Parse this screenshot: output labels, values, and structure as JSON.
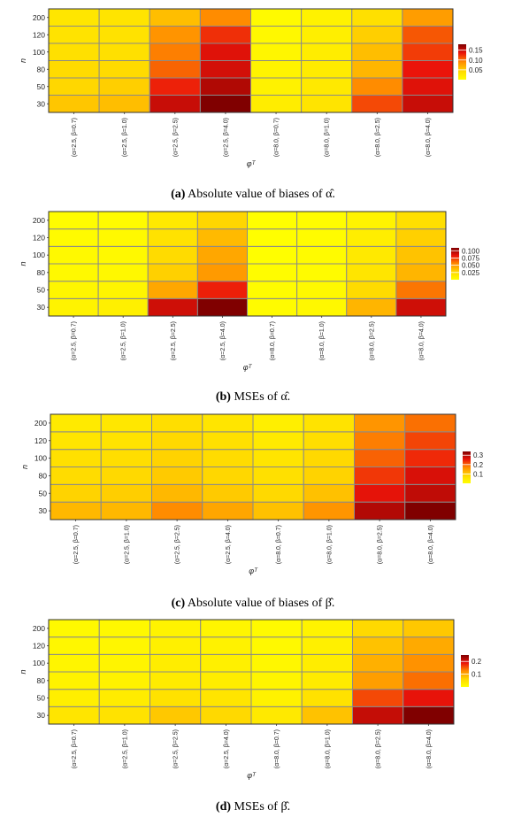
{
  "chart_data": [
    {
      "type": "heatmap",
      "panel_label": "(a)",
      "caption": "Absolute value of biases of α̂.",
      "xlabel": "φᵀ",
      "ylabel": "n",
      "y_categories": [
        "30",
        "50",
        "80",
        "100",
        "120",
        "200"
      ],
      "x_categories": [
        "(α=2.5, β=0.7)",
        "(α=2.5, β=1.0)",
        "(α=2.5, β=2.5)",
        "(α=2.5, β=4.0)",
        "(α=8.0, β=0.7)",
        "(α=8.0, β=1.0)",
        "(α=8.0, β=2.5)",
        "(α=8.0, β=4.0)"
      ],
      "colorbar_ticks": [
        "0.15",
        "0.10",
        "0.05"
      ],
      "colorbar_range": [
        0.0,
        0.18
      ],
      "values": [
        [
          0.055,
          0.06,
          0.15,
          0.18,
          0.02,
          0.03,
          0.115,
          0.15
        ],
        [
          0.045,
          0.05,
          0.13,
          0.16,
          0.015,
          0.025,
          0.09,
          0.14
        ],
        [
          0.04,
          0.04,
          0.105,
          0.145,
          0.012,
          0.022,
          0.065,
          0.135
        ],
        [
          0.035,
          0.035,
          0.095,
          0.14,
          0.01,
          0.02,
          0.06,
          0.12
        ],
        [
          0.032,
          0.033,
          0.085,
          0.125,
          0.008,
          0.018,
          0.05,
          0.11
        ],
        [
          0.028,
          0.03,
          0.06,
          0.09,
          0.006,
          0.015,
          0.035,
          0.08
        ]
      ]
    },
    {
      "type": "heatmap",
      "panel_label": "(b)",
      "caption": "MSEs of α̂.",
      "xlabel": "φᵀ",
      "ylabel": "n",
      "y_categories": [
        "30",
        "50",
        "80",
        "100",
        "120",
        "200"
      ],
      "x_categories": [
        "(α=2.5, β=0.7)",
        "(α=2.5, β=1.0)",
        "(α=2.5, β=2.5)",
        "(α=2.5, β=4.0)",
        "(α=8.0, β=0.7)",
        "(α=8.0, β=1.0)",
        "(α=8.0, β=2.5)",
        "(α=8.0, β=4.0)"
      ],
      "colorbar_ticks": [
        "0.100",
        "0.075",
        "0.050",
        "0.025"
      ],
      "colorbar_range": [
        0.0,
        0.11
      ],
      "values": [
        [
          0.008,
          0.01,
          0.09,
          0.11,
          0.003,
          0.005,
          0.04,
          0.09
        ],
        [
          0.006,
          0.007,
          0.045,
          0.08,
          0.002,
          0.004,
          0.025,
          0.06
        ],
        [
          0.004,
          0.005,
          0.03,
          0.05,
          0.002,
          0.003,
          0.018,
          0.04
        ],
        [
          0.004,
          0.004,
          0.025,
          0.045,
          0.001,
          0.003,
          0.015,
          0.035
        ],
        [
          0.003,
          0.004,
          0.02,
          0.038,
          0.001,
          0.002,
          0.012,
          0.03
        ],
        [
          0.002,
          0.003,
          0.015,
          0.028,
          0.001,
          0.002,
          0.008,
          0.022
        ]
      ]
    },
    {
      "type": "heatmap",
      "panel_label": "(c)",
      "caption": "Absolute value of biases of β̂.",
      "xlabel": "φᵀ",
      "ylabel": "n",
      "y_categories": [
        "30",
        "50",
        "80",
        "100",
        "120",
        "200"
      ],
      "x_categories": [
        "(α=2.5, β=0.7)",
        "(α=2.5, β=1.0)",
        "(α=2.5, β=2.5)",
        "(α=2.5, β=4.0)",
        "(α=8.0, β=0.7)",
        "(α=8.0, β=1.0)",
        "(α=8.0, β=2.5)",
        "(α=8.0, β=4.0)"
      ],
      "colorbar_ticks": [
        "0.3",
        "0.2",
        "0.1"
      ],
      "colorbar_range": [
        0.0,
        0.34
      ],
      "values": [
        [
          0.12,
          0.12,
          0.17,
          0.14,
          0.11,
          0.16,
          0.3,
          0.34
        ],
        [
          0.09,
          0.095,
          0.12,
          0.1,
          0.08,
          0.11,
          0.26,
          0.29
        ],
        [
          0.075,
          0.08,
          0.1,
          0.085,
          0.065,
          0.09,
          0.23,
          0.27
        ],
        [
          0.065,
          0.07,
          0.09,
          0.075,
          0.055,
          0.08,
          0.2,
          0.24
        ],
        [
          0.055,
          0.06,
          0.08,
          0.065,
          0.045,
          0.07,
          0.18,
          0.22
        ],
        [
          0.045,
          0.05,
          0.07,
          0.055,
          0.035,
          0.06,
          0.16,
          0.19
        ]
      ]
    },
    {
      "type": "heatmap",
      "panel_label": "(d)",
      "caption": "MSEs of β̂.",
      "xlabel": "φᵀ",
      "ylabel": "n",
      "y_categories": [
        "30",
        "50",
        "80",
        "100",
        "120",
        "200"
      ],
      "x_categories": [
        "(α=2.5, β=0.7)",
        "(α=2.5, β=1.0)",
        "(α=2.5, β=2.5)",
        "(α=2.5, β=4.0)",
        "(α=8.0, β=0.7)",
        "(α=8.0, β=1.0)",
        "(α=8.0, β=2.5)",
        "(α=8.0, β=4.0)"
      ],
      "colorbar_ticks": [
        "0.2",
        "0.1"
      ],
      "colorbar_range": [
        0.0,
        0.25
      ],
      "values": [
        [
          0.04,
          0.045,
          0.075,
          0.06,
          0.035,
          0.08,
          0.21,
          0.25
        ],
        [
          0.025,
          0.03,
          0.045,
          0.04,
          0.02,
          0.045,
          0.16,
          0.19
        ],
        [
          0.018,
          0.02,
          0.032,
          0.028,
          0.015,
          0.032,
          0.11,
          0.14
        ],
        [
          0.015,
          0.017,
          0.028,
          0.024,
          0.012,
          0.028,
          0.095,
          0.12
        ],
        [
          0.012,
          0.014,
          0.024,
          0.02,
          0.01,
          0.024,
          0.08,
          0.1
        ],
        [
          0.009,
          0.011,
          0.018,
          0.015,
          0.008,
          0.018,
          0.06,
          0.075
        ]
      ]
    }
  ]
}
